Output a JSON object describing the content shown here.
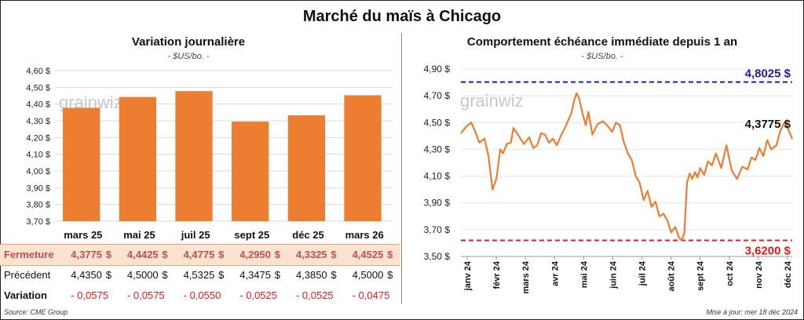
{
  "title": "Marché du maïs à Chicago",
  "left": {
    "subtitle": "Variation journalière",
    "unit": "- $US/bo. -",
    "logo": "grainwiz",
    "chart_data": {
      "type": "bar",
      "categories": [
        "mars 25",
        "mai 25",
        "juil 25",
        "sept 25",
        "déc 25",
        "mars 26"
      ],
      "values": [
        4.3775,
        4.4425,
        4.4775,
        4.295,
        4.3325,
        4.4525
      ],
      "ylim": [
        3.7,
        4.6
      ],
      "yticks": [
        "4,60 $",
        "4,50 $",
        "4,40 $",
        "4,30 $",
        "4,20 $",
        "4,10 $",
        "4,00 $",
        "3,90 $",
        "3,80 $",
        "3,70 $"
      ],
      "bar_color": "#ed7d31",
      "grid": true
    },
    "table": {
      "rows": [
        {
          "label": "Fermeture",
          "style": "fermeture",
          "values": [
            "4,3775",
            "4,4425",
            "4,4775",
            "4,2950",
            "4,3325",
            "4,4525"
          ],
          "currency": "$"
        },
        {
          "label": "Précédent",
          "style": "plain",
          "values": [
            "4,4350",
            "4,5000",
            "4,5325",
            "4,3475",
            "4,3850",
            "4,5000"
          ],
          "currency": "$"
        },
        {
          "label": "Variation",
          "style": "variation",
          "values": [
            "- 0,0575",
            "- 0,0575",
            "- 0,0550",
            "- 0,0525",
            "- 0,0525",
            "- 0,0475"
          ],
          "currency": ""
        }
      ]
    },
    "source": "Source: CME Group"
  },
  "right": {
    "subtitle": "Comportement  échéance immédiate  depuis 1 an",
    "unit": "- $US/bo. -",
    "logo": "grainwiz",
    "updated": "Mise à jour: mer 18 déc 2024",
    "chart_data": {
      "type": "line",
      "ylim": [
        3.5,
        4.9
      ],
      "yticks": [
        "4,90 $",
        "4,70 $",
        "4,50 $",
        "4,30 $",
        "4,10 $",
        "3,90 $",
        "3,70 $",
        "3,50 $"
      ],
      "xticks": [
        "janv 24",
        "févr 24",
        "mars 24",
        "avr 24",
        "mai 24",
        "juin 24",
        "juil 24",
        "août 24",
        "sept 24",
        "oct 24",
        "nov 24",
        "déc 24"
      ],
      "x_index_range": [
        0,
        252
      ],
      "series_color": "#ed7d31",
      "x": [
        0,
        4,
        8,
        11,
        14,
        18,
        21,
        24,
        27,
        30,
        32,
        35,
        38,
        40,
        44,
        48,
        52,
        55,
        58,
        61,
        64,
        67,
        70,
        73,
        76,
        80,
        84,
        86,
        88,
        90,
        93,
        95,
        97,
        100,
        104,
        108,
        112,
        115,
        118,
        121,
        124,
        127,
        130,
        133,
        136,
        139,
        142,
        145,
        148,
        151,
        154,
        157,
        160,
        163,
        166,
        168,
        170,
        172,
        174,
        176,
        178,
        180,
        182,
        185,
        188,
        191,
        194,
        198,
        202,
        206,
        210,
        214,
        218,
        221,
        224,
        227,
        230,
        233,
        236,
        240,
        243,
        246,
        249,
        252
      ],
      "values": [
        4.42,
        4.47,
        4.5,
        4.43,
        4.35,
        4.38,
        4.25,
        4.0,
        4.08,
        4.3,
        4.27,
        4.34,
        4.35,
        4.46,
        4.4,
        4.34,
        4.39,
        4.31,
        4.33,
        4.42,
        4.41,
        4.35,
        4.38,
        4.33,
        4.4,
        4.48,
        4.57,
        4.66,
        4.72,
        4.68,
        4.55,
        4.48,
        4.58,
        4.41,
        4.49,
        4.51,
        4.47,
        4.43,
        4.5,
        4.48,
        4.35,
        4.27,
        4.22,
        4.1,
        4.05,
        3.92,
        3.99,
        3.87,
        3.91,
        3.8,
        3.82,
        3.77,
        3.68,
        3.72,
        3.64,
        3.62,
        3.68,
        4.05,
        4.12,
        4.08,
        4.13,
        4.09,
        4.16,
        4.11,
        4.21,
        4.18,
        4.27,
        4.16,
        4.33,
        4.14,
        4.08,
        4.17,
        4.15,
        4.24,
        4.22,
        4.31,
        4.25,
        4.37,
        4.3,
        4.33,
        4.44,
        4.5,
        4.45,
        4.3775
      ],
      "ref_lines": [
        {
          "value": 4.8025,
          "label": "4,8025 $",
          "color": "#1c1ca8"
        },
        {
          "value": 3.62,
          "label": "3,6200 $",
          "color": "#e31a1c"
        }
      ],
      "last_label": "4,3775 $"
    }
  }
}
